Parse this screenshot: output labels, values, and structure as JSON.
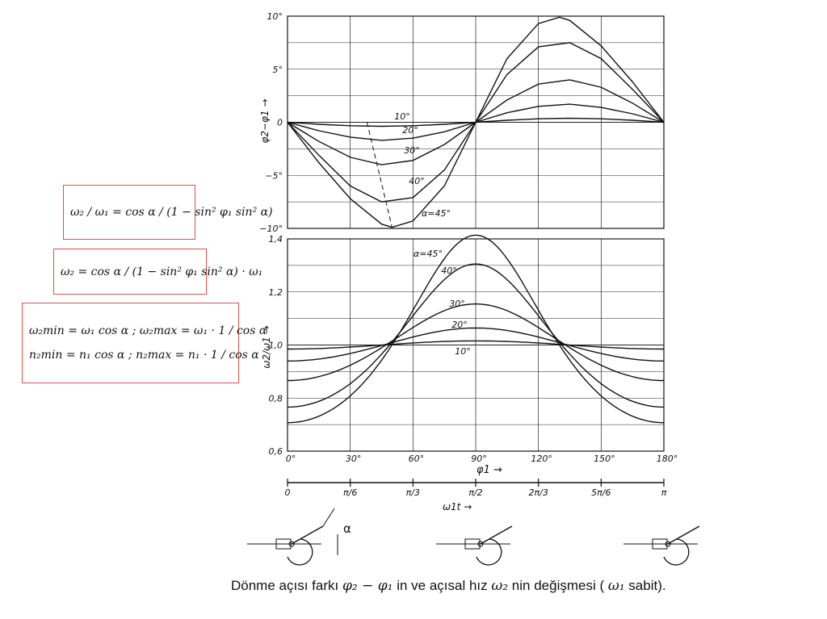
{
  "chart_data": [
    {
      "type": "line",
      "xlabel": "",
      "ylabel": "φ2−φ1 →",
      "x_range": [
        0,
        180
      ],
      "ylim": [
        -10,
        10
      ],
      "y_ticks": [
        "10°",
        "5°",
        "0",
        "−5°",
        "−10°"
      ],
      "y_tick_values": [
        10,
        5,
        0,
        -5,
        -10
      ],
      "grid": true,
      "series": [
        {
          "name": "10°",
          "amplitude": 0.38,
          "values": [
            [
              0,
              0
            ],
            [
              15,
              -0.19
            ],
            [
              30,
              -0.33
            ],
            [
              45,
              -0.38
            ],
            [
              60,
              -0.33
            ],
            [
              75,
              -0.19
            ],
            [
              90,
              0
            ],
            [
              105,
              0.19
            ],
            [
              120,
              0.33
            ],
            [
              135,
              0.38
            ],
            [
              150,
              0.33
            ],
            [
              165,
              0.19
            ],
            [
              180,
              0
            ]
          ]
        },
        {
          "name": "20°",
          "amplitude": 1.7,
          "values": [
            [
              0,
              0
            ],
            [
              15,
              -0.8
            ],
            [
              30,
              -1.4
            ],
            [
              45,
              -1.7
            ],
            [
              60,
              -1.5
            ],
            [
              75,
              -0.9
            ],
            [
              90,
              0
            ],
            [
              105,
              0.9
            ],
            [
              120,
              1.5
            ],
            [
              135,
              1.7
            ],
            [
              150,
              1.4
            ],
            [
              165,
              0.8
            ],
            [
              180,
              0
            ]
          ]
        },
        {
          "name": "30°",
          "amplitude": 4.0,
          "values": [
            [
              0,
              0
            ],
            [
              15,
              -1.8
            ],
            [
              30,
              -3.3
            ],
            [
              45,
              -4.0
            ],
            [
              60,
              -3.6
            ],
            [
              75,
              -2.1
            ],
            [
              90,
              0
            ],
            [
              105,
              2.1
            ],
            [
              120,
              3.6
            ],
            [
              135,
              4.0
            ],
            [
              150,
              3.3
            ],
            [
              165,
              1.8
            ],
            [
              180,
              0
            ]
          ]
        },
        {
          "name": "40°",
          "amplitude": 7.5,
          "values": [
            [
              0,
              0
            ],
            [
              15,
              -3.1
            ],
            [
              30,
              -6.0
            ],
            [
              45,
              -7.5
            ],
            [
              60,
              -7.1
            ],
            [
              75,
              -4.5
            ],
            [
              90,
              0
            ],
            [
              105,
              4.5
            ],
            [
              120,
              7.1
            ],
            [
              135,
              7.5
            ],
            [
              150,
              6.0
            ],
            [
              165,
              3.1
            ],
            [
              180,
              0
            ]
          ]
        },
        {
          "name": "α=45°",
          "amplitude": 9.9,
          "values": [
            [
              0,
              0
            ],
            [
              15,
              -3.8
            ],
            [
              30,
              -7.2
            ],
            [
              45,
              -9.6
            ],
            [
              50,
              -9.9
            ],
            [
              60,
              -9.3
            ],
            [
              75,
              -6.0
            ],
            [
              90,
              0
            ],
            [
              105,
              6.0
            ],
            [
              120,
              9.3
            ],
            [
              130,
              9.9
            ],
            [
              135,
              9.6
            ],
            [
              150,
              7.2
            ],
            [
              165,
              3.8
            ],
            [
              180,
              0
            ]
          ]
        }
      ]
    },
    {
      "type": "line",
      "xlabel": "φ1 →",
      "ylabel": "ω2/ω1 →",
      "ylim": [
        0.6,
        1.4
      ],
      "x_ticks": [
        "0°",
        "30°",
        "60°",
        "90°",
        "120°",
        "150°",
        "180°"
      ],
      "x_tick_values": [
        0,
        30,
        60,
        90,
        120,
        150,
        180
      ],
      "y_ticks": [
        "1,4",
        "1,2",
        "1,0",
        "0,8",
        "0,6"
      ],
      "y_tick_values": [
        1.4,
        1.2,
        1.0,
        0.8,
        0.6
      ],
      "secondary_x_label": "ω1t →",
      "secondary_x_ticks": [
        "0",
        "π/6",
        "π/3",
        "π/2",
        "2π/3",
        "5π/6",
        "π"
      ],
      "grid": true,
      "series": [
        {
          "name": "10°",
          "alpha_deg": 10,
          "values": [
            [
              0,
              0.985
            ],
            [
              30,
              0.99
            ],
            [
              60,
              1.0
            ],
            [
              90,
              1.015
            ],
            [
              120,
              1.0
            ],
            [
              150,
              0.99
            ],
            [
              180,
              0.985
            ]
          ]
        },
        {
          "name": "20°",
          "alpha_deg": 20,
          "values": [
            [
              0,
              0.94
            ],
            [
              30,
              0.96
            ],
            [
              60,
              1.0
            ],
            [
              90,
              1.064
            ],
            [
              120,
              1.0
            ],
            [
              150,
              0.96
            ],
            [
              180,
              0.94
            ]
          ]
        },
        {
          "name": "30°",
          "alpha_deg": 30,
          "values": [
            [
              0,
              0.866
            ],
            [
              30,
              0.92
            ],
            [
              60,
              1.01
            ],
            [
              90,
              1.155
            ],
            [
              120,
              1.01
            ],
            [
              150,
              0.92
            ],
            [
              180,
              0.866
            ]
          ]
        },
        {
          "name": "40°",
          "alpha_deg": 40,
          "values": [
            [
              0,
              0.766
            ],
            [
              30,
              0.85
            ],
            [
              60,
              1.02
            ],
            [
              90,
              1.305
            ],
            [
              120,
              1.02
            ],
            [
              150,
              0.85
            ],
            [
              180,
              0.766
            ]
          ]
        },
        {
          "name": "α=45°",
          "alpha_deg": 45,
          "values": [
            [
              0,
              0.707
            ],
            [
              30,
              0.8
            ],
            [
              60,
              1.04
            ],
            [
              90,
              1.414
            ],
            [
              120,
              1.04
            ],
            [
              150,
              0.8
            ],
            [
              180,
              0.707
            ]
          ]
        }
      ]
    }
  ],
  "formulas": {
    "f1": "ω₂ / ω₁ = cos α / (1 − sin² φ₁ sin² α)",
    "f2": "ω₂ = cos α / (1 − sin² φ₁ sin² α) · ω₁",
    "f3a": "ω₂min = ω₁ cos α ;   ω₂max = ω₁ · 1 / cos α",
    "f3b": "n₂min = n₁ cos α ;   n₂max = n₁ · 1 / cos α"
  },
  "mechanism_label": "α",
  "caption": {
    "part1": "Dönme açısı farkı",
    "sym1": "φ₂ − φ₁",
    "part2": "in ve açısal hız",
    "sym2": "ω₂",
    "part3": "nin  değişmesi (",
    "sym3": "ω₁",
    "part4": "sabit)."
  },
  "colors": {
    "ink": "#111111",
    "grid": "#222222",
    "formula_border": "#d9534f"
  }
}
